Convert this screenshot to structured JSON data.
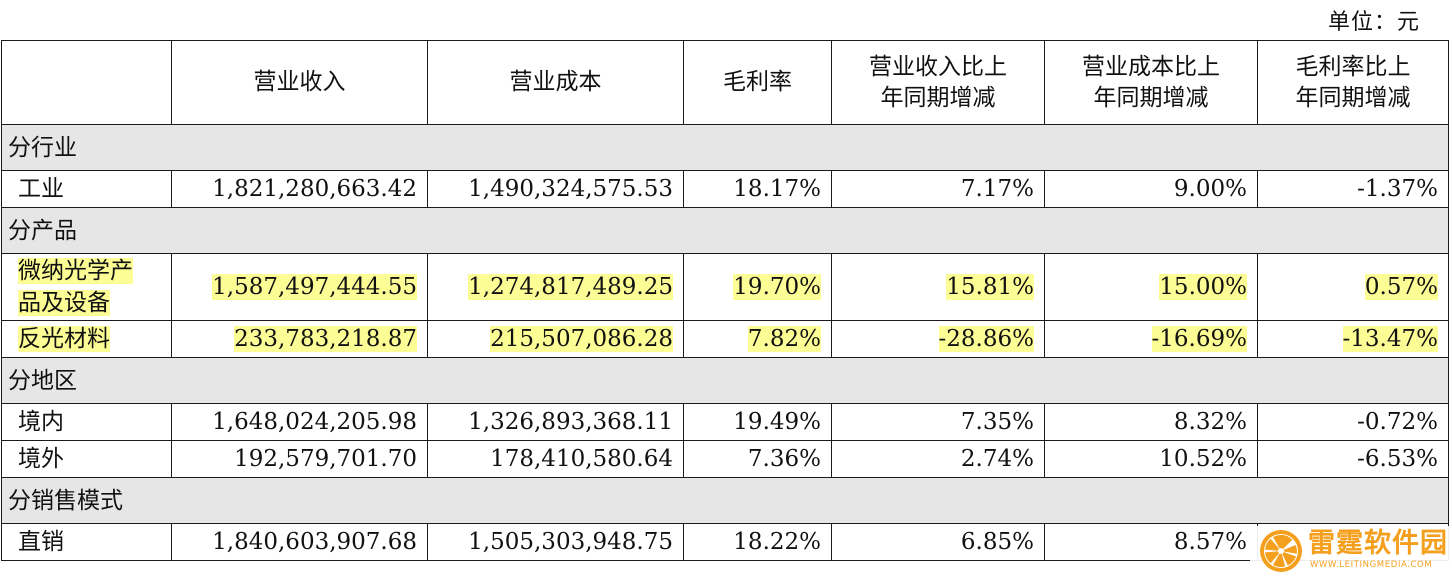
{
  "unit_label": "单位：元",
  "headers": {
    "blank": "",
    "revenue": "营业收入",
    "cost": "营业成本",
    "margin": "毛利率",
    "revenue_yoy_line1": "营业收入比上",
    "revenue_yoy_line2": "年同期增减",
    "cost_yoy_line1": "营业成本比上",
    "cost_yoy_line2": "年同期增减",
    "margin_yoy_line1": "毛利率比上",
    "margin_yoy_line2": "年同期增减"
  },
  "sections": [
    {
      "title": "分行业",
      "rows": [
        {
          "label": "工业",
          "revenue": "1,821,280,663.42",
          "cost": "1,490,324,575.53",
          "margin": "18.17%",
          "revenue_yoy": "7.17%",
          "cost_yoy": "9.00%",
          "margin_yoy": "-1.37%"
        }
      ]
    },
    {
      "title": "分产品",
      "rows": [
        {
          "label_line1": "微纳光学产",
          "label_line2": "品及设备",
          "revenue": "1,587,497,444.55",
          "cost": "1,274,817,489.25",
          "margin": "19.70%",
          "revenue_yoy": "15.81%",
          "cost_yoy": "15.00%",
          "margin_yoy": "0.57%"
        },
        {
          "label": "反光材料",
          "revenue": "233,783,218.87",
          "cost": "215,507,086.28",
          "margin": "7.82%",
          "revenue_yoy": "-28.86%",
          "cost_yoy": "-16.69%",
          "margin_yoy": "-13.47%"
        }
      ]
    },
    {
      "title": "分地区",
      "rows": [
        {
          "label": "境内",
          "revenue": "1,648,024,205.98",
          "cost": "1,326,893,368.11",
          "margin": "19.49%",
          "revenue_yoy": "7.35%",
          "cost_yoy": "8.32%",
          "margin_yoy": "-0.72%"
        },
        {
          "label": "境外",
          "revenue": "192,579,701.70",
          "cost": "178,410,580.64",
          "margin": "7.36%",
          "revenue_yoy": "2.74%",
          "cost_yoy": "10.52%",
          "margin_yoy": "-6.53%"
        }
      ]
    },
    {
      "title": "分销售模式",
      "rows": [
        {
          "label": "直销",
          "revenue": "1,840,603,907.68",
          "cost": "1,505,303,948.75",
          "margin": "18.22%",
          "revenue_yoy": "6.85%",
          "cost_yoy": "8.57%",
          "margin_yoy": ""
        }
      ]
    }
  ],
  "watermark": {
    "name": "雷霆软件园",
    "url": "WWW.LEITINGMEDIA.COM"
  },
  "colors": {
    "highlight": "#fdfd96",
    "section_bg": "#e6e6e6",
    "watermark": "#f4a01e"
  }
}
